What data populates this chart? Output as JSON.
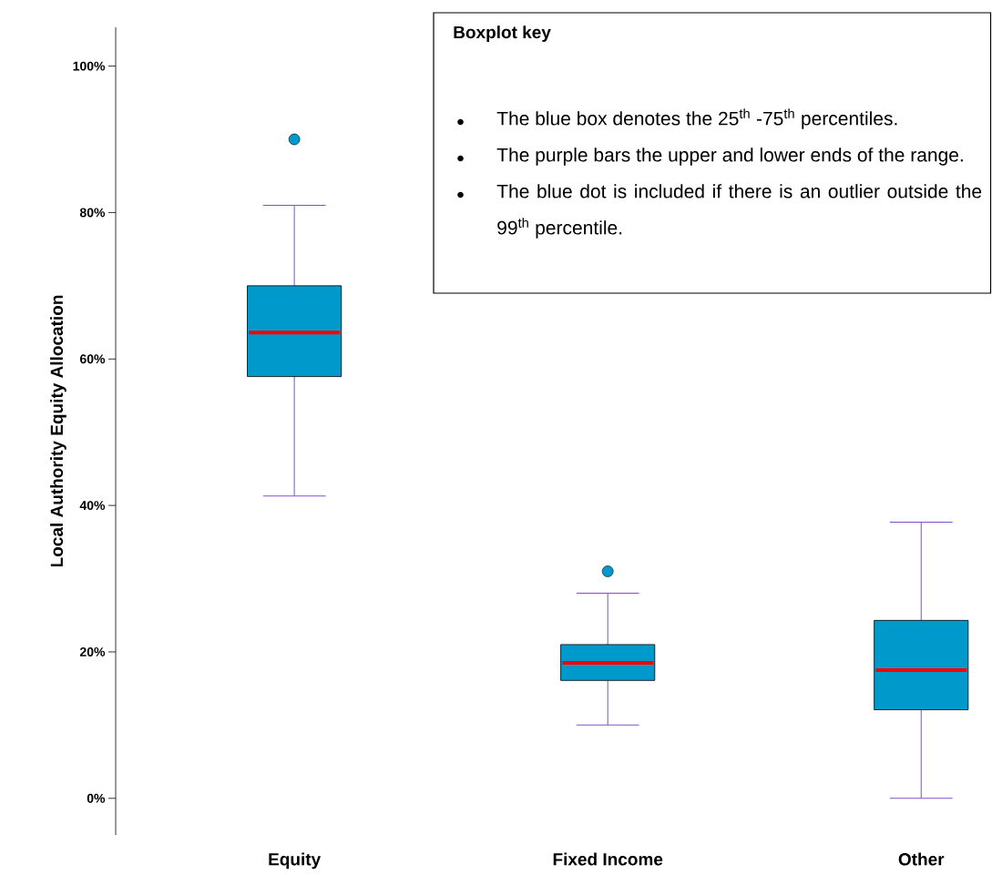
{
  "chart_data": {
    "type": "box",
    "ylabel": "Local Authority Equity Allocation",
    "categories": [
      "Equity",
      "Fixed Income",
      "Other"
    ],
    "series": [
      {
        "color": "#0099cc",
        "boxes": [
          {
            "low": 41.3,
            "q1": 57.6,
            "median": 63.6,
            "q3": 70.0,
            "high": 81.0,
            "outliers": [
              90.0
            ]
          },
          {
            "low": 10.0,
            "q1": 16.1,
            "median": 18.5,
            "q3": 21.0,
            "high": 28.0,
            "outliers": [
              31.0
            ]
          },
          {
            "low": 0,
            "q1": 12.1,
            "median": 17.5,
            "q3": 24.3,
            "high": 37.7
          }
        ]
      }
    ],
    "ylim": [
      -5,
      105.3
    ],
    "yticks": [
      {
        "value": 0,
        "label": "0%"
      },
      {
        "value": 20,
        "label": "20%"
      },
      {
        "value": 40,
        "label": "40%"
      },
      {
        "value": 60,
        "label": "60%"
      },
      {
        "value": 80,
        "label": "80%"
      },
      {
        "value": 100,
        "label": "100%"
      }
    ],
    "marker": "circle",
    "annotations": [
      "Boxplot key",
      "The blue box denotes the 25$^{th}$ -75$^{th}$ percentiles.",
      "The purple bars the upper and lower ends of the range.",
      "The blue dot is included if there is an outlier outside the 99$^{th}$ percentile."
    ]
  }
}
